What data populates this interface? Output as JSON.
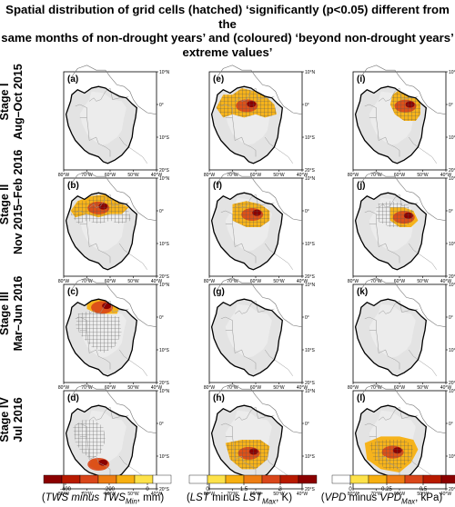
{
  "title": {
    "line1": "Spatial distribution of grid cells (hatched) ‘significantly (p<0.05) different from the",
    "line2": "same months of non-drought years’ and (coloured) ‘beyond non-drought years’",
    "line3": "extreme values’"
  },
  "stages": [
    {
      "name": "Stage I",
      "period": "Aug–Oct 2015"
    },
    {
      "name": "Stage II",
      "period": "Nov 2015–Feb 2016"
    },
    {
      "name": "Stage III",
      "period": "Mar–Jun 2016"
    },
    {
      "name": "Stage IV",
      "period": "Jul 2016"
    }
  ],
  "axes": {
    "lat_ticks": [
      "10°N",
      "0°",
      "10°S",
      "20°S"
    ],
    "lon_ticks": [
      "80°W",
      "70°W",
      "60°W",
      "50°W",
      "40°W"
    ]
  },
  "columns": [
    {
      "variable": "TWS",
      "colorbar": {
        "ticks": [
          "-400",
          "-200",
          "0"
        ],
        "label_pre": "(",
        "label_var": "TWS",
        "label_mid": " minus ",
        "label_var2": "TWS",
        "label_sub": "Min",
        "label_post": ", mm)",
        "colors": [
          "#8b0000",
          "#b81a00",
          "#d9461a",
          "#ee7d12",
          "#f7b010",
          "#fde24a"
        ]
      }
    },
    {
      "variable": "LST",
      "colorbar": {
        "ticks": [
          "0",
          "1.5",
          "3"
        ],
        "label_pre": "(",
        "label_var": "LST",
        "label_mid": " minus ",
        "label_var2": "LST",
        "label_sub": "Max",
        "label_post": ", K)",
        "colors": [
          "#fde24a",
          "#f7b010",
          "#ee7d12",
          "#d9461a",
          "#b81a00",
          "#8b0000"
        ]
      }
    },
    {
      "variable": "VPD",
      "colorbar": {
        "ticks": [
          "0",
          "0.25",
          "0.5"
        ],
        "label_pre": "(",
        "label_var": "VPD",
        "label_mid": "  minus ",
        "label_var2": "VPD",
        "label_sub": "Max",
        "label_post": ", kPa)",
        "colors": [
          "#fde24a",
          "#f7b010",
          "#ee7d12",
          "#d9461a",
          "#b81a00",
          "#8b0000"
        ]
      }
    }
  ],
  "panels": [
    {
      "letter": "(a)",
      "row": 0,
      "col": 0,
      "hatch_level": 0,
      "hatch_region": "none",
      "color_region": "none"
    },
    {
      "letter": "(e)",
      "row": 0,
      "col": 1,
      "hatch_level": 2,
      "hatch_region": "north_wide",
      "color_region": "north_wide"
    },
    {
      "letter": "(i)",
      "row": 0,
      "col": 2,
      "hatch_level": 2,
      "hatch_region": "northeast",
      "color_region": "northeast"
    },
    {
      "letter": "(b)",
      "row": 1,
      "col": 0,
      "hatch_level": 2,
      "hatch_region": "north_wide",
      "color_region": "north_band"
    },
    {
      "letter": "(f)",
      "row": 1,
      "col": 1,
      "hatch_level": 2,
      "hatch_region": "center_north",
      "color_region": "center_north"
    },
    {
      "letter": "(j)",
      "row": 1,
      "col": 2,
      "hatch_level": 2,
      "hatch_region": "center_north",
      "color_region": "northeast_mid"
    },
    {
      "letter": "(c)",
      "row": 2,
      "col": 0,
      "hatch_level": 2,
      "hatch_region": "central",
      "color_region": "north_strip"
    },
    {
      "letter": "(g)",
      "row": 2,
      "col": 1,
      "hatch_level": 1,
      "hatch_region": "none",
      "color_region": "none"
    },
    {
      "letter": "(k)",
      "row": 2,
      "col": 2,
      "hatch_level": 1,
      "hatch_region": "none",
      "color_region": "none"
    },
    {
      "letter": "(d)",
      "row": 3,
      "col": 0,
      "hatch_level": 2,
      "hatch_region": "west_central",
      "color_region": "south_small"
    },
    {
      "letter": "(h)",
      "row": 3,
      "col": 1,
      "hatch_level": 2,
      "hatch_region": "center_south",
      "color_region": "center_south"
    },
    {
      "letter": "(l)",
      "row": 3,
      "col": 2,
      "hatch_level": 2,
      "hatch_region": "center_south",
      "color_region": "center_south_wide"
    }
  ]
}
